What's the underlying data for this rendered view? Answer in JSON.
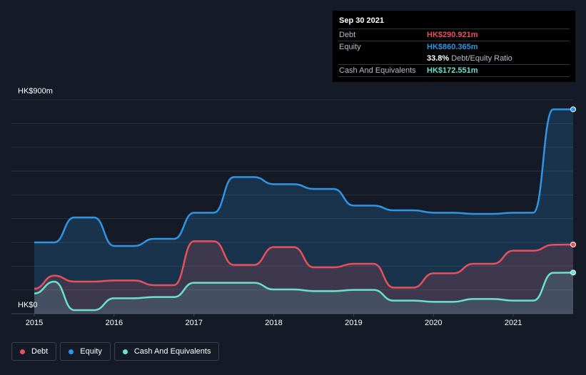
{
  "tooltip": {
    "date": "Sep 30 2021",
    "rows": [
      {
        "label": "Debt",
        "value": "HK$290.921m",
        "color": "#e8515c"
      },
      {
        "label": "Equity",
        "value": "HK$860.365m",
        "color": "#2f95e5"
      },
      {
        "label": "",
        "value": "33.8%",
        "sub": "Debt/Equity Ratio",
        "color": "#ffffff"
      },
      {
        "label": "Cash And Equivalents",
        "value": "HK$172.551m",
        "color": "#6de0ce"
      }
    ]
  },
  "legend": [
    {
      "label": "Debt",
      "color": "#e8515c"
    },
    {
      "label": "Equity",
      "color": "#2f95e5"
    },
    {
      "label": "Cash And Equivalents",
      "color": "#6de0ce"
    }
  ],
  "chart_data": {
    "type": "area",
    "title": "",
    "xlabel": "",
    "ylabel": "",
    "y_tick_labels": [
      "HK$900m",
      "HK$0"
    ],
    "ylim": [
      0,
      900
    ],
    "xlim": [
      2015.0,
      2021.75
    ],
    "x_ticks": [
      2015,
      2016,
      2017,
      2018,
      2019,
      2020,
      2021
    ],
    "x_tick_labels": [
      "2015",
      "2016",
      "2017",
      "2018",
      "2019",
      "2020",
      "2021"
    ],
    "grid": true,
    "legend_position": "bottom-left",
    "series": [
      {
        "name": "Debt",
        "color": "#e8515c",
        "x": [
          2015.0,
          2015.25,
          2015.5,
          2015.75,
          2016.0,
          2016.25,
          2016.5,
          2016.75,
          2017.0,
          2017.25,
          2017.5,
          2017.75,
          2018.0,
          2018.25,
          2018.5,
          2018.75,
          2019.0,
          2019.25,
          2019.5,
          2019.75,
          2020.0,
          2020.25,
          2020.5,
          2020.75,
          2021.0,
          2021.25,
          2021.5,
          2021.75
        ],
        "values": [
          105,
          160,
          135,
          135,
          140,
          140,
          120,
          120,
          305,
          305,
          205,
          205,
          280,
          280,
          195,
          195,
          210,
          210,
          110,
          110,
          170,
          170,
          210,
          210,
          265,
          265,
          290,
          291
        ]
      },
      {
        "name": "Equity",
        "color": "#2f95e5",
        "x": [
          2015.0,
          2015.25,
          2015.5,
          2015.75,
          2016.0,
          2016.25,
          2016.5,
          2016.75,
          2017.0,
          2017.25,
          2017.5,
          2017.75,
          2018.0,
          2018.25,
          2018.5,
          2018.75,
          2019.0,
          2019.25,
          2019.5,
          2019.75,
          2020.0,
          2020.25,
          2020.5,
          2020.75,
          2021.0,
          2021.25,
          2021.5,
          2021.75
        ],
        "values": [
          300,
          300,
          405,
          405,
          285,
          285,
          315,
          315,
          425,
          425,
          575,
          575,
          545,
          545,
          525,
          525,
          455,
          455,
          435,
          435,
          425,
          425,
          420,
          420,
          425,
          425,
          860,
          860
        ]
      },
      {
        "name": "Cash And Equivalents",
        "color": "#6de0ce",
        "x": [
          2015.0,
          2015.25,
          2015.5,
          2015.75,
          2016.0,
          2016.25,
          2016.5,
          2016.75,
          2017.0,
          2017.25,
          2017.5,
          2017.75,
          2018.0,
          2018.25,
          2018.5,
          2018.75,
          2019.0,
          2019.25,
          2019.5,
          2019.75,
          2020.0,
          2020.25,
          2020.5,
          2020.75,
          2021.0,
          2021.25,
          2021.5,
          2021.75
        ],
        "values": [
          85,
          135,
          15,
          15,
          65,
          65,
          70,
          70,
          130,
          130,
          130,
          130,
          102,
          102,
          95,
          95,
          100,
          100,
          55,
          55,
          50,
          50,
          62,
          62,
          55,
          55,
          172,
          173
        ]
      }
    ]
  }
}
